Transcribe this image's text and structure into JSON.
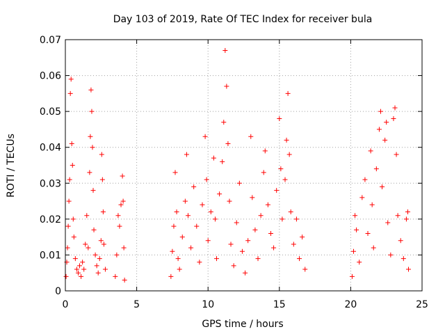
{
  "chart_data": {
    "type": "scatter",
    "title": "Day 103 of 2019, Rate Of TEC Index for receiver bula",
    "xlabel": "GPS time / hours",
    "ylabel": "ROTI / TECUs",
    "xlim": [
      0,
      25
    ],
    "ylim": [
      0,
      0.07
    ],
    "xticks": [
      0,
      5,
      10,
      15,
      20,
      25
    ],
    "xtick_labels": [
      "0",
      "5",
      "10",
      "15",
      "20",
      "25"
    ],
    "yticks": [
      0,
      0.01,
      0.02,
      0.03,
      0.04,
      0.05,
      0.06,
      0.07
    ],
    "ytick_labels": [
      "0",
      "0.01",
      "0.02",
      "0.03",
      "0.04",
      "0.05",
      "0.06",
      "0.07"
    ],
    "grid": true,
    "marker": "+",
    "color": "#ff0000",
    "series": [
      {
        "points": [
          [
            0.05,
            0.004
          ],
          [
            0.1,
            0.008
          ],
          [
            0.15,
            0.012
          ],
          [
            0.2,
            0.018
          ],
          [
            0.25,
            0.025
          ],
          [
            0.3,
            0.031
          ],
          [
            0.35,
            0.055
          ],
          [
            0.4,
            0.059
          ],
          [
            0.45,
            0.041
          ],
          [
            0.5,
            0.035
          ],
          [
            0.55,
            0.02
          ],
          [
            0.6,
            0.015
          ],
          [
            0.7,
            0.009
          ],
          [
            0.8,
            0.006
          ],
          [
            0.9,
            0.005
          ],
          [
            1.0,
            0.007
          ],
          [
            1.1,
            0.004
          ],
          [
            1.2,
            0.008
          ],
          [
            1.3,
            0.006
          ],
          [
            1.4,
            0.013
          ],
          [
            1.5,
            0.021
          ],
          [
            1.6,
            0.012
          ],
          [
            1.7,
            0.033
          ],
          [
            1.75,
            0.043
          ],
          [
            1.8,
            0.056
          ],
          [
            1.85,
            0.05
          ],
          [
            1.9,
            0.04
          ],
          [
            1.95,
            0.028
          ],
          [
            2.0,
            0.017
          ],
          [
            2.1,
            0.01
          ],
          [
            2.2,
            0.007
          ],
          [
            2.3,
            0.005
          ],
          [
            2.4,
            0.009
          ],
          [
            2.5,
            0.014
          ],
          [
            2.55,
            0.038
          ],
          [
            2.6,
            0.031
          ],
          [
            2.65,
            0.022
          ],
          [
            2.7,
            0.013
          ],
          [
            2.8,
            0.006
          ],
          [
            3.5,
            0.004
          ],
          [
            3.6,
            0.01
          ],
          [
            3.7,
            0.021
          ],
          [
            3.8,
            0.018
          ],
          [
            3.9,
            0.024
          ],
          [
            4.0,
            0.032
          ],
          [
            4.05,
            0.025
          ],
          [
            4.1,
            0.012
          ],
          [
            4.15,
            0.003
          ],
          [
            7.4,
            0.004
          ],
          [
            7.5,
            0.011
          ],
          [
            7.6,
            0.018
          ],
          [
            7.7,
            0.033
          ],
          [
            7.8,
            0.022
          ],
          [
            7.9,
            0.009
          ],
          [
            8.0,
            0.006
          ],
          [
            8.2,
            0.015
          ],
          [
            8.4,
            0.025
          ],
          [
            8.5,
            0.038
          ],
          [
            8.6,
            0.021
          ],
          [
            8.8,
            0.012
          ],
          [
            9.0,
            0.029
          ],
          [
            9.2,
            0.018
          ],
          [
            9.4,
            0.008
          ],
          [
            9.6,
            0.024
          ],
          [
            9.8,
            0.043
          ],
          [
            9.9,
            0.031
          ],
          [
            10.0,
            0.014
          ],
          [
            10.2,
            0.022
          ],
          [
            10.4,
            0.037
          ],
          [
            10.5,
            0.02
          ],
          [
            10.6,
            0.009
          ],
          [
            10.8,
            0.027
          ],
          [
            11.0,
            0.036
          ],
          [
            11.1,
            0.047
          ],
          [
            11.2,
            0.067
          ],
          [
            11.3,
            0.057
          ],
          [
            11.4,
            0.041
          ],
          [
            11.5,
            0.025
          ],
          [
            11.6,
            0.013
          ],
          [
            11.8,
            0.007
          ],
          [
            12.0,
            0.019
          ],
          [
            12.2,
            0.03
          ],
          [
            12.4,
            0.011
          ],
          [
            12.6,
            0.005
          ],
          [
            12.8,
            0.014
          ],
          [
            13.0,
            0.043
          ],
          [
            13.1,
            0.026
          ],
          [
            13.3,
            0.017
          ],
          [
            13.5,
            0.009
          ],
          [
            13.7,
            0.021
          ],
          [
            13.9,
            0.033
          ],
          [
            14.0,
            0.039
          ],
          [
            14.2,
            0.024
          ],
          [
            14.4,
            0.016
          ],
          [
            14.6,
            0.012
          ],
          [
            14.8,
            0.028
          ],
          [
            15.0,
            0.048
          ],
          [
            15.1,
            0.034
          ],
          [
            15.2,
            0.02
          ],
          [
            15.4,
            0.031
          ],
          [
            15.5,
            0.042
          ],
          [
            15.6,
            0.055
          ],
          [
            15.7,
            0.038
          ],
          [
            15.8,
            0.022
          ],
          [
            16.0,
            0.013
          ],
          [
            16.2,
            0.02
          ],
          [
            16.4,
            0.009
          ],
          [
            16.6,
            0.015
          ],
          [
            16.8,
            0.006
          ],
          [
            20.1,
            0.004
          ],
          [
            20.2,
            0.011
          ],
          [
            20.3,
            0.021
          ],
          [
            20.4,
            0.017
          ],
          [
            20.6,
            0.008
          ],
          [
            20.8,
            0.026
          ],
          [
            21.0,
            0.031
          ],
          [
            21.2,
            0.016
          ],
          [
            21.4,
            0.039
          ],
          [
            21.5,
            0.024
          ],
          [
            21.6,
            0.012
          ],
          [
            21.8,
            0.034
          ],
          [
            22.0,
            0.045
          ],
          [
            22.1,
            0.05
          ],
          [
            22.2,
            0.029
          ],
          [
            22.4,
            0.042
          ],
          [
            22.5,
            0.047
          ],
          [
            22.6,
            0.019
          ],
          [
            22.8,
            0.01
          ],
          [
            23.0,
            0.048
          ],
          [
            23.1,
            0.051
          ],
          [
            23.2,
            0.038
          ],
          [
            23.3,
            0.021
          ],
          [
            23.5,
            0.014
          ],
          [
            23.7,
            0.009
          ],
          [
            23.9,
            0.02
          ],
          [
            24.0,
            0.022
          ],
          [
            24.05,
            0.006
          ]
        ]
      }
    ]
  }
}
